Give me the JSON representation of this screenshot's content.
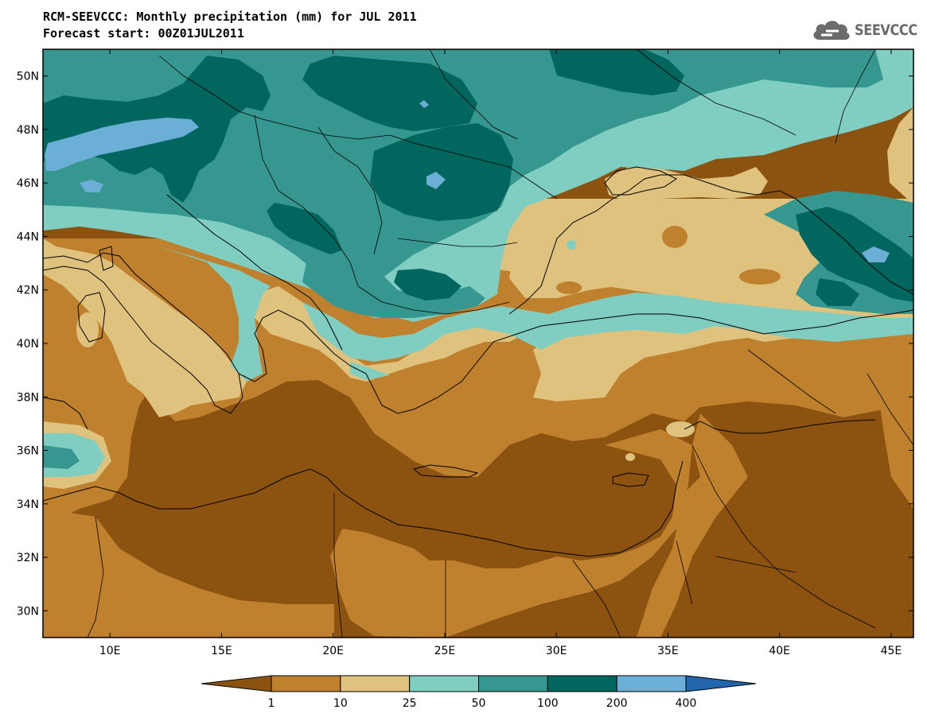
{
  "title": {
    "line1": "RCM-SEEVCCC: Monthly precipitation (mm) for JUL 2011",
    "line2": "Forecast start: 00Z01JUL2011"
  },
  "logo": {
    "text": "SEEVCCC",
    "icon": "cloud-icon",
    "color": "#6b6b6b"
  },
  "map": {
    "lon_range": [
      7,
      46
    ],
    "lat_range": [
      29,
      51
    ],
    "lat_labels": [
      {
        "lat": 30,
        "label": "30N"
      },
      {
        "lat": 32,
        "label": "32N"
      },
      {
        "lat": 34,
        "label": "34N"
      },
      {
        "lat": 36,
        "label": "36N"
      },
      {
        "lat": 38,
        "label": "38N"
      },
      {
        "lat": 40,
        "label": "40N"
      },
      {
        "lat": 42,
        "label": "42N"
      },
      {
        "lat": 44,
        "label": "44N"
      },
      {
        "lat": 46,
        "label": "46N"
      },
      {
        "lat": 48,
        "label": "48N"
      },
      {
        "lat": 50,
        "label": "50N"
      }
    ],
    "lon_labels": [
      {
        "lon": 10,
        "label": "10E"
      },
      {
        "lon": 15,
        "label": "15E"
      },
      {
        "lon": 20,
        "label": "20E"
      },
      {
        "lon": 25,
        "label": "25E"
      },
      {
        "lon": 30,
        "label": "30E"
      },
      {
        "lon": 35,
        "label": "35E"
      },
      {
        "lon": 40,
        "label": "40E"
      },
      {
        "lon": 45,
        "label": "45E"
      }
    ],
    "background_color": "#8c5210"
  },
  "colorbar": {
    "colors": [
      "#8c5210",
      "#bf812d",
      "#dfc27d",
      "#80cdc1",
      "#35978f",
      "#01665e",
      "#6baed6",
      "#2166ac"
    ],
    "labels": [
      "1",
      "10",
      "25",
      "50",
      "100",
      "200",
      "400"
    ]
  }
}
